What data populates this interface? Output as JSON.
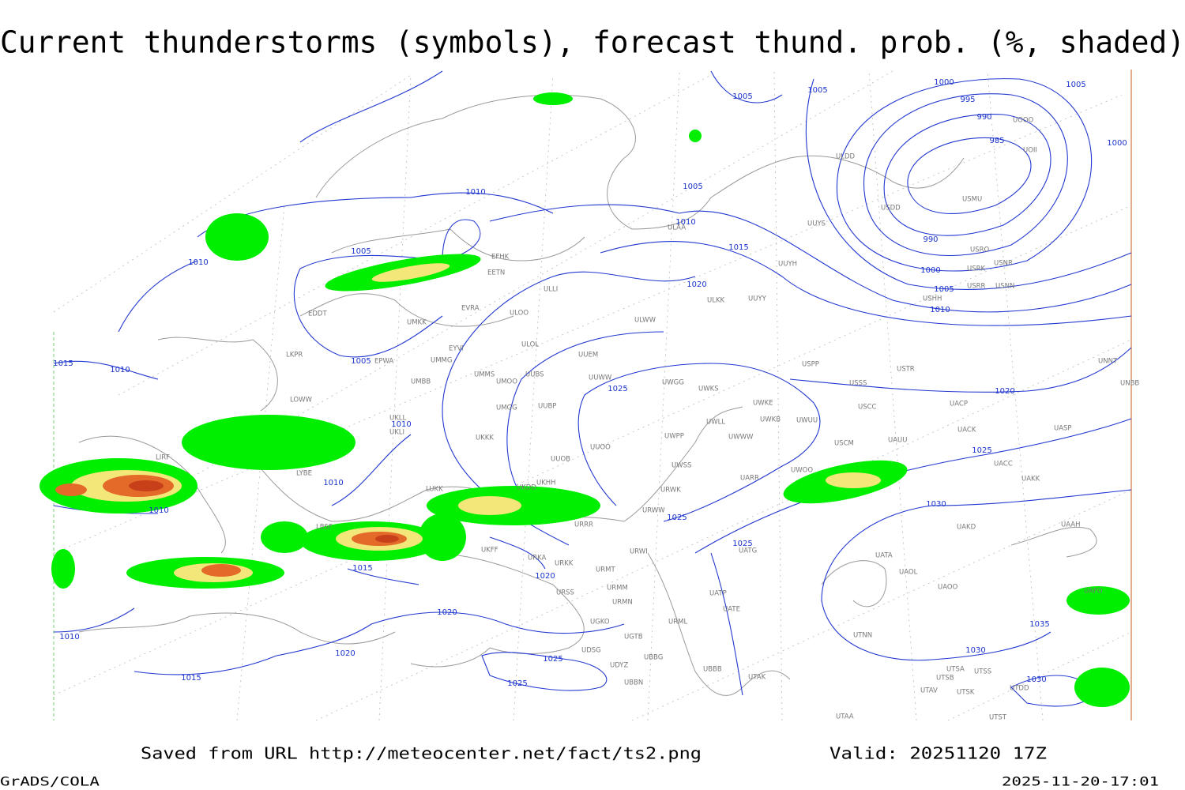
{
  "header": {
    "title": "Current thunderstorms (symbols), forecast thund. prob. (%, shaded)"
  },
  "map": {
    "isobar_labels": [
      "1005",
      "1005",
      "1000",
      "995",
      "990",
      "985",
      "1005",
      "1000",
      "1005",
      "1010",
      "1010",
      "1005",
      "1010",
      "990",
      "1000",
      "1005",
      "1010",
      "1015",
      "1020",
      "1005",
      "1015",
      "1010",
      "1025",
      "1020",
      "1010",
      "1025",
      "1010",
      "1010",
      "1025",
      "1030",
      "1025",
      "1015",
      "1020",
      "1020",
      "1010",
      "1020",
      "1030",
      "1035",
      "1025",
      "1025",
      "1015",
      "1030"
    ],
    "stations": [
      "ULDD",
      "UOII",
      "UOOO",
      "USDD",
      "USMU",
      "ULAA",
      "UUYS",
      "UUYH",
      "USRO",
      "USRK",
      "USNR",
      "USRR",
      "USNN",
      "USHH",
      "EFHK",
      "EETN",
      "ULLI",
      "EVRA",
      "ULOO",
      "ULKK",
      "UUYY",
      "ULWW",
      "EDDT",
      "UMKK",
      "EYVI",
      "ULOL",
      "UUEM",
      "LKPR",
      "EPWA",
      "UMMG",
      "UMMS",
      "UUBS",
      "UMOO",
      "UUWW",
      "UWGG",
      "UWKS",
      "USPP",
      "USTR",
      "USSS",
      "UMBB",
      "LOWW",
      "UWKE",
      "UWKB",
      "UWUU",
      "USCC",
      "UACP",
      "UNNT",
      "UNBB",
      "UKLL",
      "UKLI",
      "UMGG",
      "UUBP",
      "UWLL",
      "UWWW",
      "UWPP",
      "USCM",
      "UAUU",
      "UACK",
      "UASP",
      "UKKK",
      "UUOO",
      "UUOB",
      "UACC",
      "UWSS",
      "LYBE",
      "UARR",
      "UWOO",
      "UAKK",
      "LUKK",
      "UKDD",
      "UKHH",
      "URWK",
      "URWW",
      "URRR",
      "UKFF",
      "UAKD",
      "UAAH",
      "UATG",
      "URWI",
      "URKA",
      "URKK",
      "URMT",
      "UATA",
      "UAOL",
      "UAOO",
      "URSS",
      "URMM",
      "LBSF",
      "LIRF",
      "URMN",
      "UATP",
      "UATE",
      "UGKO",
      "URML",
      "UGTB",
      "UTNN",
      "UDSG",
      "UBBG",
      "UBBB",
      "UDYZ",
      "UTAK",
      "UBBN",
      "UTSA",
      "UTSS",
      "UTSB",
      "UTDD",
      "UTSK",
      "UTAV",
      "UTST",
      "UTAA",
      "UAFO"
    ]
  },
  "footer": {
    "source": "Saved from URL http://meteocenter.net/fact/ts2.png",
    "valid": "Valid: 20251120 17Z",
    "software": "GrADS/COLA",
    "timestamp": "2025-11-20-17:01"
  }
}
